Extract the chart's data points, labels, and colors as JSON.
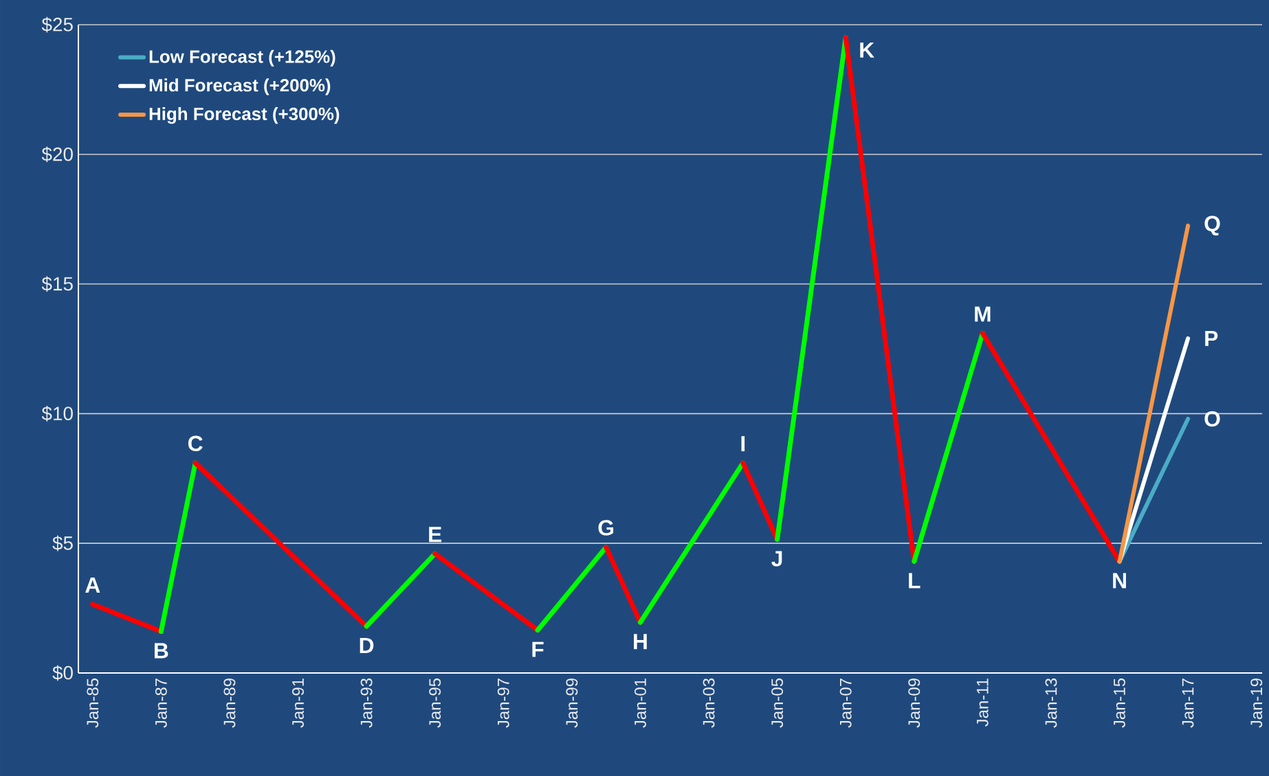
{
  "chart_data": {
    "type": "line",
    "x": [
      "1985-01",
      "1987-01",
      "1988-01",
      "1993-01",
      "1995-01",
      "1998-01",
      "2000-01",
      "2001-01",
      "2004-01",
      "2005-01",
      "2007-01",
      "2009-01",
      "2011-01",
      "2015-01"
    ],
    "series": [
      {
        "values": [
          2.65,
          1.6,
          8.1,
          1.8,
          4.6,
          1.65,
          4.85,
          1.95,
          8.1,
          5.15,
          24.5,
          4.3,
          13.1,
          4.3
        ],
        "colors": [
          "#ff0000",
          "#ff0000",
          "#00ff00",
          "#ff0000",
          "#00ff00",
          "#ff0000",
          "#00ff00",
          "#ff0000",
          "#00ff00",
          "#ff0000",
          "#00ff00",
          "#ff0000",
          "#00ff00",
          "#ff0000"
        ]
      },
      {
        "name": "Low Forecast (+125%)",
        "color": "#4bacc6",
        "x": [
          "2015-01",
          "2017-01"
        ],
        "values": [
          4.3,
          9.8
        ]
      },
      {
        "name": "Mid Forecast (+200%)",
        "color": "#ffffff",
        "x": [
          "2015-01",
          "2017-01"
        ],
        "values": [
          4.3,
          12.9
        ]
      },
      {
        "name": "High Forecast (+300%)",
        "color": "#f79646",
        "x": [
          "2015-01",
          "2017-01"
        ],
        "values": [
          4.3,
          17.25
        ]
      }
    ],
    "xlim": [
      "1984-08",
      "2019-03"
    ],
    "xticks": [
      {
        "value": "1985-01",
        "label": "Jan-85"
      },
      {
        "value": "1987-01",
        "label": "Jan-87"
      },
      {
        "value": "1989-01",
        "label": "Jan-89"
      },
      {
        "value": "1991-01",
        "label": "Jan-91"
      },
      {
        "value": "1993-01",
        "label": "Jan-93"
      },
      {
        "value": "1995-01",
        "label": "Jan-95"
      },
      {
        "value": "1997-01",
        "label": "Jan-97"
      },
      {
        "value": "1999-01",
        "label": "Jan-99"
      },
      {
        "value": "2001-01",
        "label": "Jan-01"
      },
      {
        "value": "2003-01",
        "label": "Jan-03"
      },
      {
        "value": "2005-01",
        "label": "Jan-05"
      },
      {
        "value": "2007-01",
        "label": "Jan-07"
      },
      {
        "value": "2009-01",
        "label": "Jan-09"
      },
      {
        "value": "2011-01",
        "label": "Jan-11"
      },
      {
        "value": "2013-01",
        "label": "Jan-13"
      },
      {
        "value": "2015-01",
        "label": "Jan-15"
      },
      {
        "value": "2017-01",
        "label": "Jan-17"
      },
      {
        "value": "2019-01",
        "label": "Jan-19"
      }
    ],
    "ylim": [
      0,
      25
    ],
    "yticks": [
      {
        "value": 0,
        "label": "$0"
      },
      {
        "value": 5,
        "label": "$5"
      },
      {
        "value": 10,
        "label": "$10"
      },
      {
        "value": 15,
        "label": "$15"
      },
      {
        "value": 20,
        "label": "$20"
      },
      {
        "value": 25,
        "label": "$25"
      }
    ],
    "grid": "y",
    "legend": "top left",
    "annotations": [
      {
        "text": "A",
        "x": "1985-01",
        "y": 2.65
      },
      {
        "text": "B",
        "x": "1987-01",
        "y": 1.6
      },
      {
        "text": "C",
        "x": "1988-01",
        "y": 8.1
      },
      {
        "text": "D",
        "x": "1993-01",
        "y": 1.8
      },
      {
        "text": "E",
        "x": "1995-01",
        "y": 4.6
      },
      {
        "text": "F",
        "x": "1998-01",
        "y": 1.65
      },
      {
        "text": "G",
        "x": "2000-01",
        "y": 4.85
      },
      {
        "text": "H",
        "x": "2001-01",
        "y": 1.95
      },
      {
        "text": "I",
        "x": "2004-01",
        "y": 8.1
      },
      {
        "text": "J",
        "x": "2005-01",
        "y": 5.15
      },
      {
        "text": "K",
        "x": "2007-01",
        "y": 24.5
      },
      {
        "text": "L",
        "x": "2009-01",
        "y": 4.3
      },
      {
        "text": "M",
        "x": "2011-01",
        "y": 13.1
      },
      {
        "text": "N",
        "x": "2015-01",
        "y": 4.3
      },
      {
        "text": "O",
        "x": "2017-01",
        "y": 9.8
      },
      {
        "text": "P",
        "x": "2017-01",
        "y": 12.9
      },
      {
        "text": "Q",
        "x": "2017-01",
        "y": 17.25
      }
    ]
  }
}
